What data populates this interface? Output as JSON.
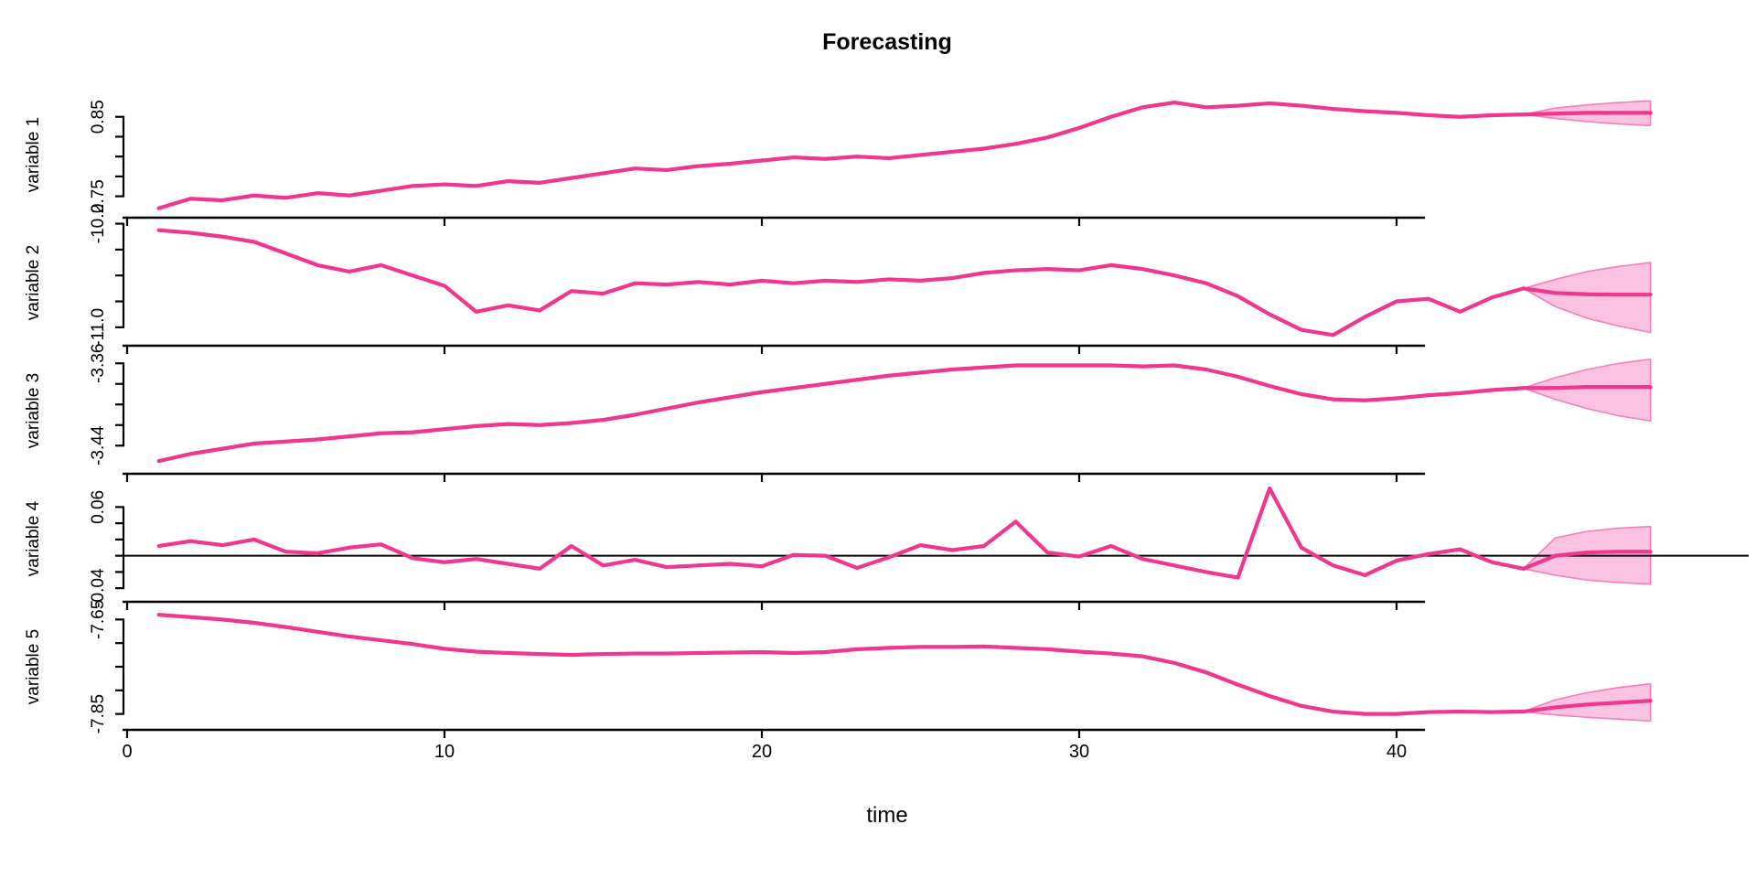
{
  "title": "Forecasting",
  "xlabel": "time",
  "colors": {
    "series_line": "#F1368F",
    "fan_fill": "#FBC2E1",
    "fan_edge": "#F67EBD",
    "axis": "#000000",
    "zero_line": "#000000",
    "background": "#FFFFFF"
  },
  "chart_data": {
    "type": "line",
    "title": "Forecasting",
    "xlabel": "time",
    "x_ticks": [
      0,
      10,
      20,
      30,
      40
    ],
    "x_tick_labels": [
      "0",
      "10",
      "20",
      "30",
      "40"
    ],
    "x_range": [
      0,
      48
    ],
    "history_x_start": 1,
    "forecast_x": [
      44,
      45,
      46,
      47,
      48
    ],
    "legend": "none",
    "grid": false,
    "panels": [
      {
        "name": "variable 1",
        "ylim": [
          0.73,
          0.875
        ],
        "yticks": [
          0.75,
          0.775,
          0.8,
          0.825,
          0.85
        ],
        "ytick_labels": [
          {
            "value": 0.75,
            "text": "0.75"
          },
          {
            "value": 0.85,
            "text": "0.85"
          }
        ],
        "zero_line": false,
        "history": [
          0.735,
          0.747,
          0.745,
          0.751,
          0.748,
          0.754,
          0.751,
          0.757,
          0.763,
          0.765,
          0.763,
          0.769,
          0.767,
          0.773,
          0.779,
          0.785,
          0.783,
          0.788,
          0.791,
          0.795,
          0.799,
          0.797,
          0.8,
          0.798,
          0.802,
          0.806,
          0.81,
          0.816,
          0.824,
          0.836,
          0.85,
          0.862,
          0.868,
          0.862,
          0.864,
          0.867,
          0.864,
          0.86,
          0.857,
          0.855,
          0.852,
          0.85,
          0.852,
          0.853
        ],
        "forecast_median": [
          0.853,
          0.854,
          0.855,
          0.855,
          0.855
        ],
        "forecast_upper": [
          0.853,
          0.861,
          0.865,
          0.868,
          0.87
        ],
        "forecast_lower": [
          0.853,
          0.848,
          0.844,
          0.841,
          0.839
        ]
      },
      {
        "name": "variable 2",
        "ylim": [
          -11.1,
          -10.21
        ],
        "yticks": [
          -11.0,
          -10.8,
          -10.6,
          -10.4,
          -10.2
        ],
        "ytick_labels": [
          {
            "value": -11.0,
            "text": "-11.0"
          },
          {
            "value": -10.2,
            "text": "-10.2"
          }
        ],
        "zero_line": false,
        "history": [
          -10.25,
          -10.27,
          -10.3,
          -10.34,
          -10.43,
          -10.52,
          -10.57,
          -10.52,
          -10.6,
          -10.68,
          -10.88,
          -10.83,
          -10.87,
          -10.72,
          -10.74,
          -10.66,
          -10.67,
          -10.65,
          -10.67,
          -10.64,
          -10.66,
          -10.64,
          -10.65,
          -10.63,
          -10.64,
          -10.62,
          -10.58,
          -10.56,
          -10.55,
          -10.56,
          -10.52,
          -10.55,
          -10.6,
          -10.66,
          -10.76,
          -10.9,
          -11.02,
          -11.06,
          -10.92,
          -10.8,
          -10.78,
          -10.88,
          -10.77,
          -10.7
        ],
        "forecast_median": [
          -10.7,
          -10.735,
          -10.745,
          -10.748,
          -10.748
        ],
        "forecast_upper": [
          -10.7,
          -10.63,
          -10.57,
          -10.53,
          -10.5
        ],
        "forecast_lower": [
          -10.7,
          -10.84,
          -10.93,
          -10.99,
          -11.04
        ]
      },
      {
        "name": "variable 3",
        "ylim": [
          -3.462,
          -3.35
        ],
        "yticks": [
          -3.44,
          -3.42,
          -3.4,
          -3.38,
          -3.36
        ],
        "ytick_labels": [
          {
            "value": -3.44,
            "text": "-3.44"
          },
          {
            "value": -3.36,
            "text": "-3.36"
          }
        ],
        "zero_line": false,
        "history": [
          -3.455,
          -3.448,
          -3.443,
          -3.438,
          -3.436,
          -3.434,
          -3.431,
          -3.428,
          -3.427,
          -3.424,
          -3.421,
          -3.419,
          -3.42,
          -3.418,
          -3.415,
          -3.41,
          -3.404,
          -3.398,
          -3.393,
          -3.388,
          -3.384,
          -3.38,
          -3.376,
          -3.372,
          -3.369,
          -3.366,
          -3.364,
          -3.362,
          -3.362,
          -3.362,
          -3.362,
          -3.363,
          -3.362,
          -3.366,
          -3.373,
          -3.382,
          -3.39,
          -3.395,
          -3.396,
          -3.394,
          -3.391,
          -3.389,
          -3.386,
          -3.384
        ],
        "forecast_median": [
          -3.384,
          -3.384,
          -3.383,
          -3.383,
          -3.383
        ],
        "forecast_upper": [
          -3.384,
          -3.374,
          -3.366,
          -3.36,
          -3.356
        ],
        "forecast_lower": [
          -3.384,
          -3.395,
          -3.404,
          -3.411,
          -3.416
        ]
      },
      {
        "name": "variable 4",
        "ylim": [
          -0.05,
          0.092
        ],
        "yticks": [
          -0.04,
          -0.02,
          0.0,
          0.02,
          0.04,
          0.06
        ],
        "ytick_labels": [
          {
            "value": -0.04,
            "text": "-0.04"
          },
          {
            "value": 0.06,
            "text": "0.06"
          }
        ],
        "zero_line": true,
        "history": [
          0.012,
          0.018,
          0.013,
          0.02,
          0.005,
          0.003,
          0.01,
          0.014,
          -0.003,
          -0.008,
          -0.004,
          -0.01,
          -0.016,
          0.012,
          -0.012,
          -0.005,
          -0.014,
          -0.012,
          -0.01,
          -0.013,
          0.001,
          0.0,
          -0.015,
          -0.002,
          0.013,
          0.007,
          0.012,
          0.042,
          0.004,
          -0.001,
          0.012,
          -0.004,
          -0.012,
          -0.02,
          -0.027,
          0.083,
          0.01,
          -0.012,
          -0.024,
          -0.006,
          0.002,
          0.008,
          -0.008,
          -0.016
        ],
        "forecast_median": [
          -0.016,
          0.0,
          0.004,
          0.005,
          0.005
        ],
        "forecast_upper": [
          -0.016,
          0.022,
          0.03,
          0.034,
          0.036
        ],
        "forecast_lower": [
          -0.016,
          -0.024,
          -0.03,
          -0.033,
          -0.035
        ]
      },
      {
        "name": "variable 5",
        "ylim": [
          -7.872,
          -7.628
        ],
        "yticks": [
          -7.85,
          -7.8,
          -7.75,
          -7.7,
          -7.65
        ],
        "ytick_labels": [
          {
            "value": -7.85,
            "text": "-7.85"
          },
          {
            "value": -7.65,
            "text": "-7.65"
          }
        ],
        "zero_line": false,
        "history": [
          -7.64,
          -7.645,
          -7.65,
          -7.657,
          -7.666,
          -7.676,
          -7.686,
          -7.694,
          -7.702,
          -7.712,
          -7.718,
          -7.721,
          -7.723,
          -7.725,
          -7.723,
          -7.722,
          -7.722,
          -7.721,
          -7.72,
          -7.719,
          -7.721,
          -7.719,
          -7.713,
          -7.71,
          -7.708,
          -7.708,
          -7.707,
          -7.71,
          -7.713,
          -7.718,
          -7.722,
          -7.728,
          -7.742,
          -7.762,
          -7.788,
          -7.812,
          -7.833,
          -7.845,
          -7.85,
          -7.85,
          -7.846,
          -7.845,
          -7.846,
          -7.845
        ],
        "forecast_median": [
          -7.845,
          -7.836,
          -7.83,
          -7.826,
          -7.822
        ],
        "forecast_upper": [
          -7.845,
          -7.82,
          -7.805,
          -7.794,
          -7.786
        ],
        "forecast_lower": [
          -7.845,
          -7.852,
          -7.857,
          -7.861,
          -7.865
        ]
      }
    ]
  }
}
